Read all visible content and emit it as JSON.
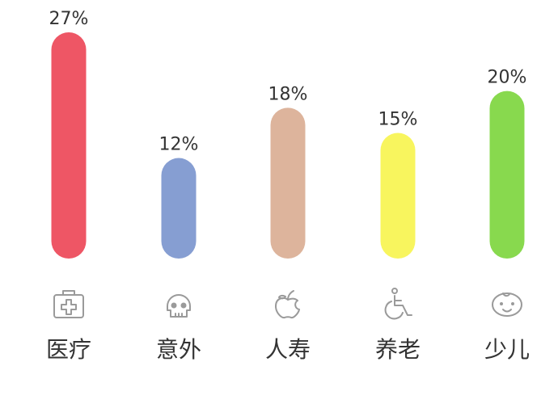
{
  "chart_data": {
    "type": "bar",
    "categories": [
      "医疗",
      "意外",
      "人寿",
      "养老",
      "少儿"
    ],
    "values": [
      27,
      12,
      18,
      15,
      20
    ],
    "value_labels": [
      "27%",
      "12%",
      "18%",
      "15%",
      "20%"
    ],
    "unit": "%",
    "ylim": [
      0,
      27
    ],
    "grid": false,
    "legend": "none",
    "colors": [
      "#ee5665",
      "#869ed2",
      "#ddb49c",
      "#f8f55e",
      "#88d94e"
    ],
    "icons": [
      "medical-kit-icon",
      "skull-icon",
      "apple-icon",
      "wheelchair-icon",
      "baby-face-icon"
    ]
  }
}
